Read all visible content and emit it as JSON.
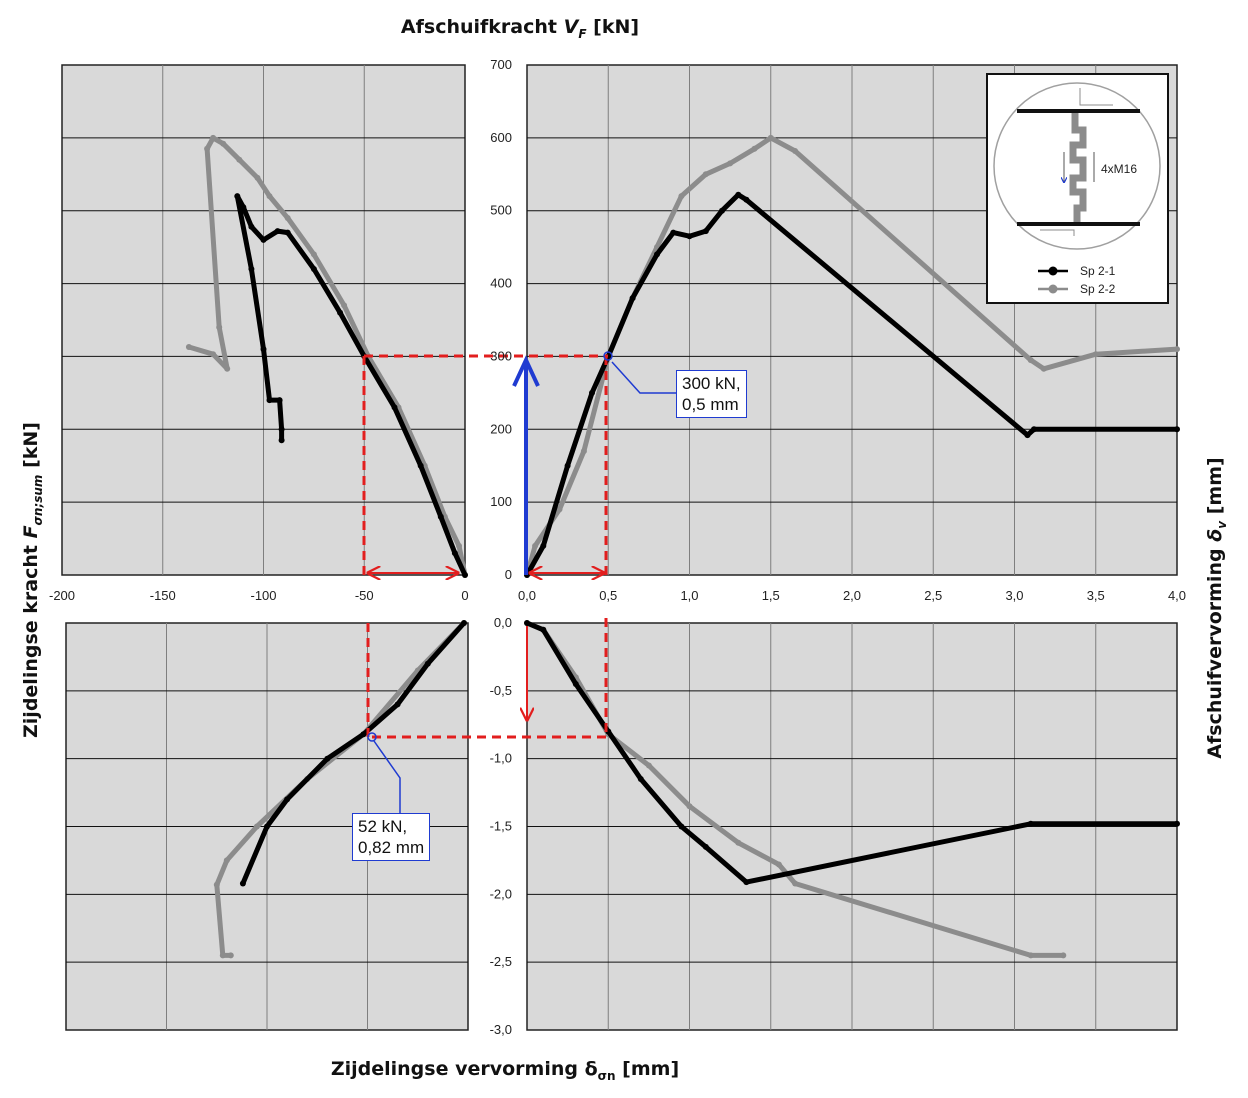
{
  "titles": {
    "top": "Afschuifkracht",
    "top_var": "V",
    "top_sub": "F",
    "top_unit": "[kN]",
    "bottom": "Zijdelingse vervorming δ",
    "bottom_sub": "σn",
    "bottom_unit": "[mm]",
    "left": "Zijdelingse kracht",
    "left_var": "F",
    "left_sub": "σn;sum",
    "left_unit": "[kN]",
    "right": "Afschuifvervorming",
    "right_var": "δ",
    "right_sub": "v",
    "right_unit": "[mm]"
  },
  "callouts": {
    "c1": [
      "300 kN,",
      "0,5 mm"
    ],
    "c2": [
      "52 kN,",
      "0,82 mm"
    ]
  },
  "legend": {
    "items": [
      {
        "label": "Sp 2-1",
        "color": "#000000"
      },
      {
        "label": "Sp 2-2",
        "color": "#8c8c8c"
      }
    ],
    "inset_label": "4xM16"
  },
  "colors": {
    "panel_bg": "#d9d9d9",
    "grid": "#7f7f7f",
    "sp21": "#000000",
    "sp22": "#8c8c8c",
    "guide": "#e21e1e",
    "arrow": "#1f3bd1"
  },
  "chart_data": [
    {
      "panel": "top-left",
      "type": "line",
      "x_label": "Zijdelingse vervorming δσn [mm]",
      "y_label": "Zijdelingse kracht Fσn;sum [kN]",
      "xlim": [
        -200,
        0
      ],
      "ylim": [
        0,
        700
      ],
      "x_ticks": [
        -200,
        -150,
        -100,
        -50,
        0
      ],
      "y_ticks": [
        0,
        100,
        200,
        300,
        400,
        500,
        600,
        700
      ],
      "grid": true,
      "series": [
        {
          "name": "Sp 2-1",
          "points": [
            [
              0,
              0
            ],
            [
              -5,
              30
            ],
            [
              -12,
              80
            ],
            [
              -22,
              150
            ],
            [
              -35,
              230
            ],
            [
              -50,
              300
            ],
            [
              -62,
              360
            ],
            [
              -75,
              420
            ],
            [
              -88,
              470
            ],
            [
              -93,
              472
            ],
            [
              -100,
              460
            ],
            [
              -106,
              478
            ],
            [
              -110,
              505
            ],
            [
              -113,
              520
            ],
            [
              -106,
              420
            ],
            [
              -100,
              310
            ],
            [
              -97,
              240
            ],
            [
              -92,
              240
            ],
            [
              -91,
              200
            ],
            [
              -91,
              185
            ]
          ]
        },
        {
          "name": "Sp 2-2",
          "points": [
            [
              0,
              0
            ],
            [
              -3,
              40
            ],
            [
              -10,
              80
            ],
            [
              -20,
              150
            ],
            [
              -33,
              230
            ],
            [
              -48,
              300
            ],
            [
              -60,
              370
            ],
            [
              -75,
              440
            ],
            [
              -88,
              490
            ],
            [
              -97,
              520
            ],
            [
              -103,
              545
            ],
            [
              -112,
              570
            ],
            [
              -120,
              592
            ],
            [
              -125,
              600
            ],
            [
              -128,
              585
            ],
            [
              -122,
              340
            ],
            [
              -118,
              283
            ],
            [
              -125,
              303
            ],
            [
              -137,
              313
            ]
          ]
        }
      ]
    },
    {
      "panel": "top-right",
      "type": "line",
      "x_label": "Afschuifvervorming δv [mm]",
      "y_label": "Afschuifkracht VF [kN]",
      "xlim": [
        0,
        4
      ],
      "ylim": [
        0,
        700
      ],
      "x_ticks": [
        "0,0",
        "0,5",
        "1,0",
        "1,5",
        "2,0",
        "2,5",
        "3,0",
        "3,5",
        "4,0"
      ],
      "y_ticks": [
        0,
        100,
        200,
        300,
        400,
        500,
        600,
        700
      ],
      "grid": true,
      "series": [
        {
          "name": "Sp 2-1",
          "points": [
            [
              0,
              0
            ],
            [
              0.1,
              40
            ],
            [
              0.25,
              150
            ],
            [
              0.4,
              250
            ],
            [
              0.5,
              300
            ],
            [
              0.65,
              380
            ],
            [
              0.8,
              440
            ],
            [
              0.9,
              470
            ],
            [
              1.0,
              465
            ],
            [
              1.1,
              472
            ],
            [
              1.2,
              500
            ],
            [
              1.3,
              522
            ],
            [
              1.35,
              515
            ],
            [
              3.08,
              192
            ],
            [
              3.12,
              200
            ],
            [
              4.0,
              200
            ]
          ]
        },
        {
          "name": "Sp 2-2",
          "points": [
            [
              0,
              0
            ],
            [
              0.05,
              40
            ],
            [
              0.2,
              90
            ],
            [
              0.35,
              170
            ],
            [
              0.5,
              300
            ],
            [
              0.65,
              380
            ],
            [
              0.8,
              450
            ],
            [
              0.95,
              520
            ],
            [
              1.1,
              550
            ],
            [
              1.25,
              565
            ],
            [
              1.4,
              585
            ],
            [
              1.5,
              600
            ],
            [
              1.65,
              582
            ],
            [
              3.1,
              295
            ],
            [
              3.18,
              283
            ],
            [
              3.5,
              303
            ],
            [
              4.0,
              310
            ]
          ]
        }
      ]
    },
    {
      "panel": "bottom-left",
      "type": "line",
      "x_label": "Zijdelingse vervorming δσn [mm]",
      "y_label": "Zijdelingse kracht Fσn;sum [kN]",
      "xlim": [
        -200,
        0
      ],
      "ylim": [
        -3.0,
        0
      ],
      "grid": true,
      "series": [
        {
          "name": "Sp 2-1",
          "points": [
            [
              -2,
              0
            ],
            [
              -20,
              -0.3
            ],
            [
              -35,
              -0.6
            ],
            [
              -52,
              -0.82
            ],
            [
              -70,
              -1.0
            ],
            [
              -90,
              -1.3
            ],
            [
              -100,
              -1.5
            ],
            [
              -112,
              -1.92
            ]
          ]
        },
        {
          "name": "Sp 2-2",
          "points": [
            [
              -2,
              0
            ],
            [
              -25,
              -0.35
            ],
            [
              -52,
              -0.82
            ],
            [
              -80,
              -1.15
            ],
            [
              -105,
              -1.5
            ],
            [
              -120,
              -1.75
            ],
            [
              -125,
              -1.93
            ],
            [
              -122,
              -2.45
            ],
            [
              -118,
              -2.45
            ]
          ]
        }
      ]
    },
    {
      "panel": "bottom-right",
      "type": "line",
      "x_label": "Afschuifvervorming δv [mm]",
      "y_label": "Zijdelingse vervorming δσn [mm]",
      "xlim": [
        0,
        4
      ],
      "ylim": [
        -3.0,
        0
      ],
      "y_ticks": [
        "0,0",
        "-0,5",
        "-1,0",
        "-1,5",
        "-2,0",
        "-2,5",
        "-3,0"
      ],
      "grid": true,
      "series": [
        {
          "name": "Sp 2-1",
          "points": [
            [
              0,
              0
            ],
            [
              0.1,
              -0.05
            ],
            [
              0.3,
              -0.45
            ],
            [
              0.5,
              -0.8
            ],
            [
              0.7,
              -1.15
            ],
            [
              0.95,
              -1.5
            ],
            [
              1.1,
              -1.65
            ],
            [
              1.35,
              -1.91
            ],
            [
              3.1,
              -1.48
            ],
            [
              4.0,
              -1.48
            ]
          ]
        },
        {
          "name": "Sp 2-2",
          "points": [
            [
              0,
              0
            ],
            [
              0.1,
              -0.05
            ],
            [
              0.3,
              -0.4
            ],
            [
              0.5,
              -0.82
            ],
            [
              0.75,
              -1.05
            ],
            [
              1.0,
              -1.35
            ],
            [
              1.3,
              -1.62
            ],
            [
              1.55,
              -1.78
            ],
            [
              1.65,
              -1.92
            ],
            [
              3.1,
              -2.45
            ],
            [
              3.3,
              -2.45
            ]
          ]
        }
      ]
    }
  ]
}
